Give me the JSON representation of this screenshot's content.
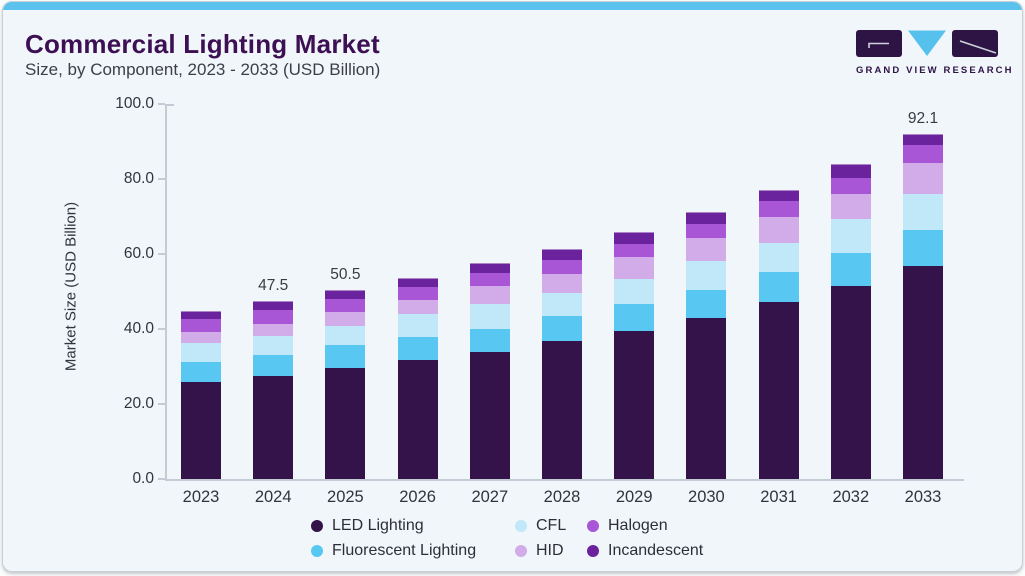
{
  "header": {
    "title": "Commercial Lighting Market",
    "subtitle": "Size, by Component, 2023 - 2033 (USD Billion)"
  },
  "logo": {
    "text": "GRAND VIEW RESEARCH",
    "purple": "#2e1445",
    "cyan": "#55c1ec"
  },
  "colors": {
    "accent_bar": "#5bc2ee",
    "card_background": "#f1f6fa",
    "axis": "#c3cbd4",
    "title_text": "#3c1053",
    "body_text": "#33333d"
  },
  "chart_data": {
    "type": "bar",
    "stacked": true,
    "title": "Commercial Lighting Market Size, by Component, 2023 - 2033 (USD Billion)",
    "xlabel": "",
    "ylabel": "Market Size (USD Billion)",
    "ylim": [
      0,
      100
    ],
    "yticks": [
      0,
      20,
      40,
      60,
      80,
      100
    ],
    "ytick_labels": [
      "0.0",
      "20.0",
      "40.0",
      "60.0",
      "80.0",
      "100.0"
    ],
    "grid": false,
    "legend_position": "bottom",
    "categories": [
      "2023",
      "2024",
      "2025",
      "2026",
      "2027",
      "2028",
      "2029",
      "2030",
      "2031",
      "2032",
      "2033"
    ],
    "series": [
      {
        "name": "LED Lighting",
        "color": "#331349",
        "values": [
          25.9,
          27.4,
          29.7,
          31.8,
          33.9,
          36.7,
          39.5,
          43.0,
          47.1,
          51.4,
          56.8
        ]
      },
      {
        "name": "Fluorescent Lighting",
        "color": "#58c7f2",
        "values": [
          5.4,
          5.8,
          6.0,
          6.1,
          6.2,
          6.7,
          7.3,
          7.5,
          8.0,
          8.9,
          9.7
        ]
      },
      {
        "name": "CFL",
        "color": "#c0e8f9",
        "values": [
          4.9,
          5.0,
          5.2,
          6.2,
          6.6,
          6.2,
          6.5,
          7.6,
          7.8,
          9.1,
          9.5
        ]
      },
      {
        "name": "HID",
        "color": "#d2abe9",
        "values": [
          3.0,
          3.2,
          3.6,
          3.6,
          4.7,
          5.2,
          5.8,
          6.2,
          6.9,
          6.7,
          8.3
        ]
      },
      {
        "name": "Halogen",
        "color": "#a855d6",
        "values": [
          3.6,
          3.7,
          3.6,
          3.6,
          3.5,
          3.7,
          3.7,
          3.7,
          4.3,
          4.3,
          4.7
        ]
      },
      {
        "name": "Incandescent",
        "color": "#6a239c",
        "values": [
          2.1,
          2.4,
          2.4,
          2.4,
          2.6,
          2.8,
          3.0,
          3.2,
          3.0,
          3.5,
          3.1
        ]
      }
    ],
    "bar_labels": {
      "2024": "47.5",
      "2025": "50.5",
      "2033": "92.1"
    }
  }
}
